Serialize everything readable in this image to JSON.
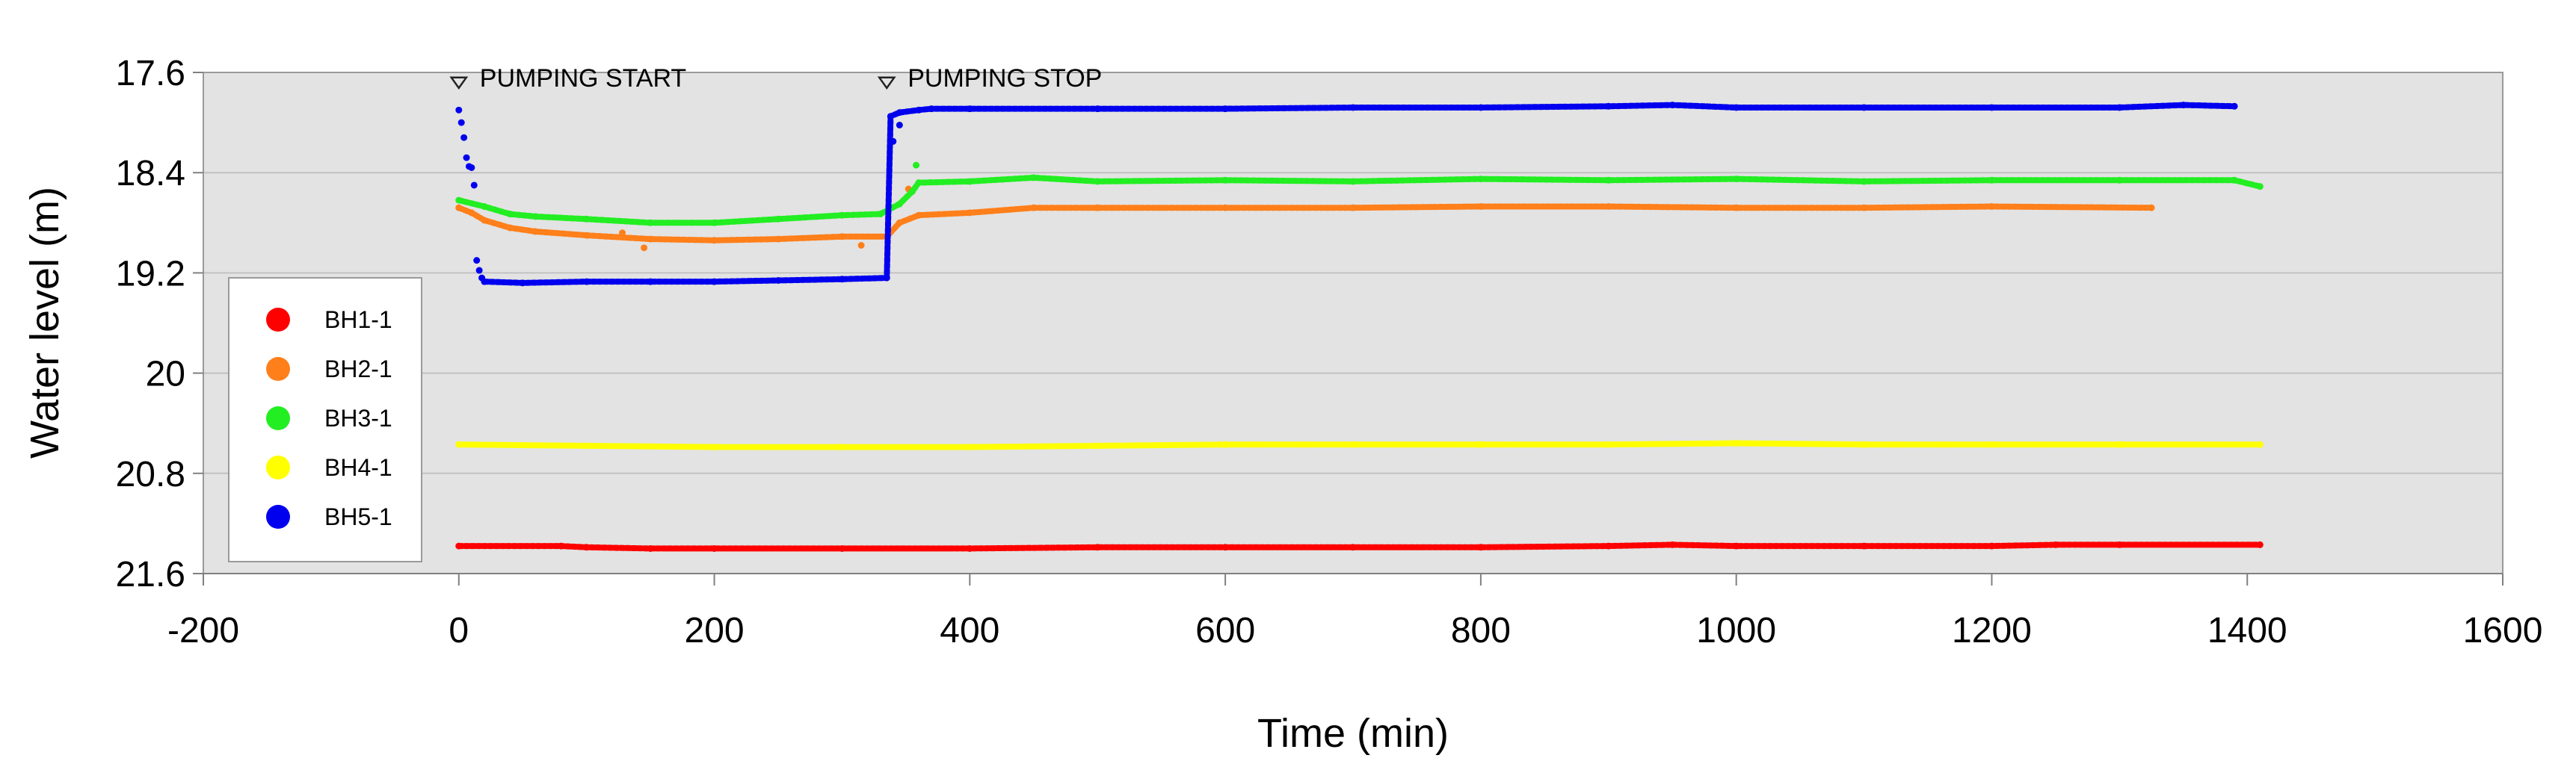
{
  "chart_data": {
    "type": "scatter",
    "xlabel": "Time (min)",
    "ylabel": "Water level (m)",
    "xlim": [
      -200,
      1600
    ],
    "ylim": [
      17.6,
      21.6
    ],
    "y_inverted": true,
    "xticks": [
      -200,
      0,
      200,
      400,
      600,
      800,
      1000,
      1200,
      1400,
      1600
    ],
    "xtick_labels": [
      "-200",
      "0",
      "200",
      "400",
      "600",
      "800",
      "1000",
      "1200",
      "1400",
      "1600"
    ],
    "yticks": [
      17.6,
      18.4,
      19.2,
      20,
      20.8,
      21.6
    ],
    "ytick_labels": [
      "17.6",
      "18.4",
      "19.2",
      "20",
      "20.8",
      "21.6"
    ],
    "grid": "horizontal",
    "plot_background": "#e3e3e3",
    "legend_position": "lower-left",
    "annotations": [
      {
        "text": "PUMPING START",
        "x": 0,
        "y": 17.73,
        "marker": "triangle-down"
      },
      {
        "text": "PUMPING STOP",
        "x": 335,
        "y": 17.73,
        "marker": "triangle-down"
      }
    ],
    "series": [
      {
        "name": "BH1-1",
        "color": "#ff0000",
        "x": [
          0,
          80,
          100,
          150,
          200,
          300,
          400,
          500,
          600,
          700,
          800,
          900,
          950,
          1000,
          1100,
          1200,
          1250,
          1300,
          1410
        ],
        "y": [
          21.38,
          21.38,
          21.39,
          21.4,
          21.4,
          21.4,
          21.4,
          21.39,
          21.39,
          21.39,
          21.39,
          21.38,
          21.37,
          21.38,
          21.38,
          21.38,
          21.37,
          21.37,
          21.37
        ]
      },
      {
        "name": "BH2-1",
        "color": "#ff7f1a",
        "x": [
          0,
          10,
          20,
          40,
          60,
          100,
          150,
          200,
          250,
          300,
          335,
          345,
          360,
          400,
          450,
          500,
          600,
          700,
          800,
          900,
          1000,
          1100,
          1200,
          1325
        ],
        "y": [
          18.68,
          18.72,
          18.78,
          18.84,
          18.87,
          18.9,
          18.93,
          18.94,
          18.93,
          18.91,
          18.91,
          18.8,
          18.74,
          18.72,
          18.68,
          18.68,
          18.68,
          18.68,
          18.67,
          18.67,
          18.68,
          18.68,
          18.67,
          18.68
        ],
        "outliers": {
          "x": [
            128,
            145,
            315,
            352
          ],
          "y": [
            18.88,
            19.0,
            18.98,
            18.53
          ]
        }
      },
      {
        "name": "BH3-1",
        "color": "#22ee22",
        "x": [
          0,
          20,
          40,
          60,
          100,
          150,
          200,
          250,
          300,
          330,
          345,
          355,
          360,
          400,
          450,
          500,
          600,
          700,
          800,
          900,
          1000,
          1100,
          1200,
          1300,
          1390,
          1410
        ],
        "y": [
          18.62,
          18.67,
          18.73,
          18.75,
          18.77,
          18.8,
          18.8,
          18.77,
          18.74,
          18.73,
          18.65,
          18.55,
          18.48,
          18.47,
          18.44,
          18.47,
          18.46,
          18.47,
          18.45,
          18.46,
          18.45,
          18.47,
          18.46,
          18.46,
          18.46,
          18.51
        ],
        "outliers": {
          "x": [
            358
          ],
          "y": [
            18.34
          ]
        }
      },
      {
        "name": "BH4-1",
        "color": "#ffff00",
        "x": [
          0,
          100,
          200,
          300,
          400,
          500,
          600,
          700,
          800,
          900,
          1000,
          1100,
          1200,
          1300,
          1410
        ],
        "y": [
          20.57,
          20.58,
          20.59,
          20.59,
          20.59,
          20.58,
          20.57,
          20.57,
          20.57,
          20.57,
          20.56,
          20.57,
          20.57,
          20.57,
          20.57
        ],
        "outliers": {
          "x": [],
          "y": []
        }
      },
      {
        "name": "BH5-1",
        "color": "#0000ee",
        "x": [
          20,
          50,
          100,
          150,
          200,
          250,
          300,
          335,
          338,
          345,
          360,
          370,
          400,
          500,
          600,
          700,
          800,
          900,
          950,
          1000,
          1100,
          1200,
          1300,
          1350,
          1390
        ],
        "y": [
          19.27,
          19.28,
          19.27,
          19.27,
          19.27,
          19.26,
          19.25,
          19.24,
          17.95,
          17.92,
          17.9,
          17.89,
          17.89,
          17.89,
          17.89,
          17.88,
          17.88,
          17.87,
          17.86,
          17.88,
          17.88,
          17.88,
          17.88,
          17.86,
          17.87
        ],
        "outliers": {
          "x": [
            0,
            2,
            4,
            6,
            8,
            10,
            12,
            14,
            16,
            18,
            340,
            345
          ],
          "y": [
            17.9,
            18.0,
            18.12,
            18.28,
            18.35,
            18.36,
            18.5,
            19.1,
            19.18,
            19.24,
            18.15,
            18.02
          ]
        }
      }
    ]
  }
}
